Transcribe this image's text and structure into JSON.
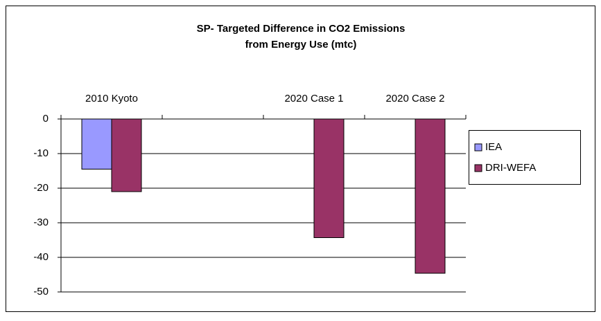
{
  "chart_data": {
    "type": "bar",
    "title": "SP- Targeted Difference in CO2 Emissions",
    "subtitle": "from Energy Use  (mtc)",
    "categories": [
      "2010 Kyoto",
      null,
      "2020 Case 1",
      "2020 Case 2"
    ],
    "series": [
      {
        "name": "IEA",
        "color": "#9999ff",
        "values": [
          -14.5,
          null,
          null,
          null
        ]
      },
      {
        "name": "DRI-WEFA",
        "color": "#993366",
        "values": [
          -21,
          null,
          -34.3,
          -44.6
        ]
      }
    ],
    "ylim": [
      -50,
      0
    ],
    "yticks": [
      0,
      -10,
      -20,
      -30,
      -40,
      -50
    ],
    "grid": true,
    "legend": "right"
  }
}
